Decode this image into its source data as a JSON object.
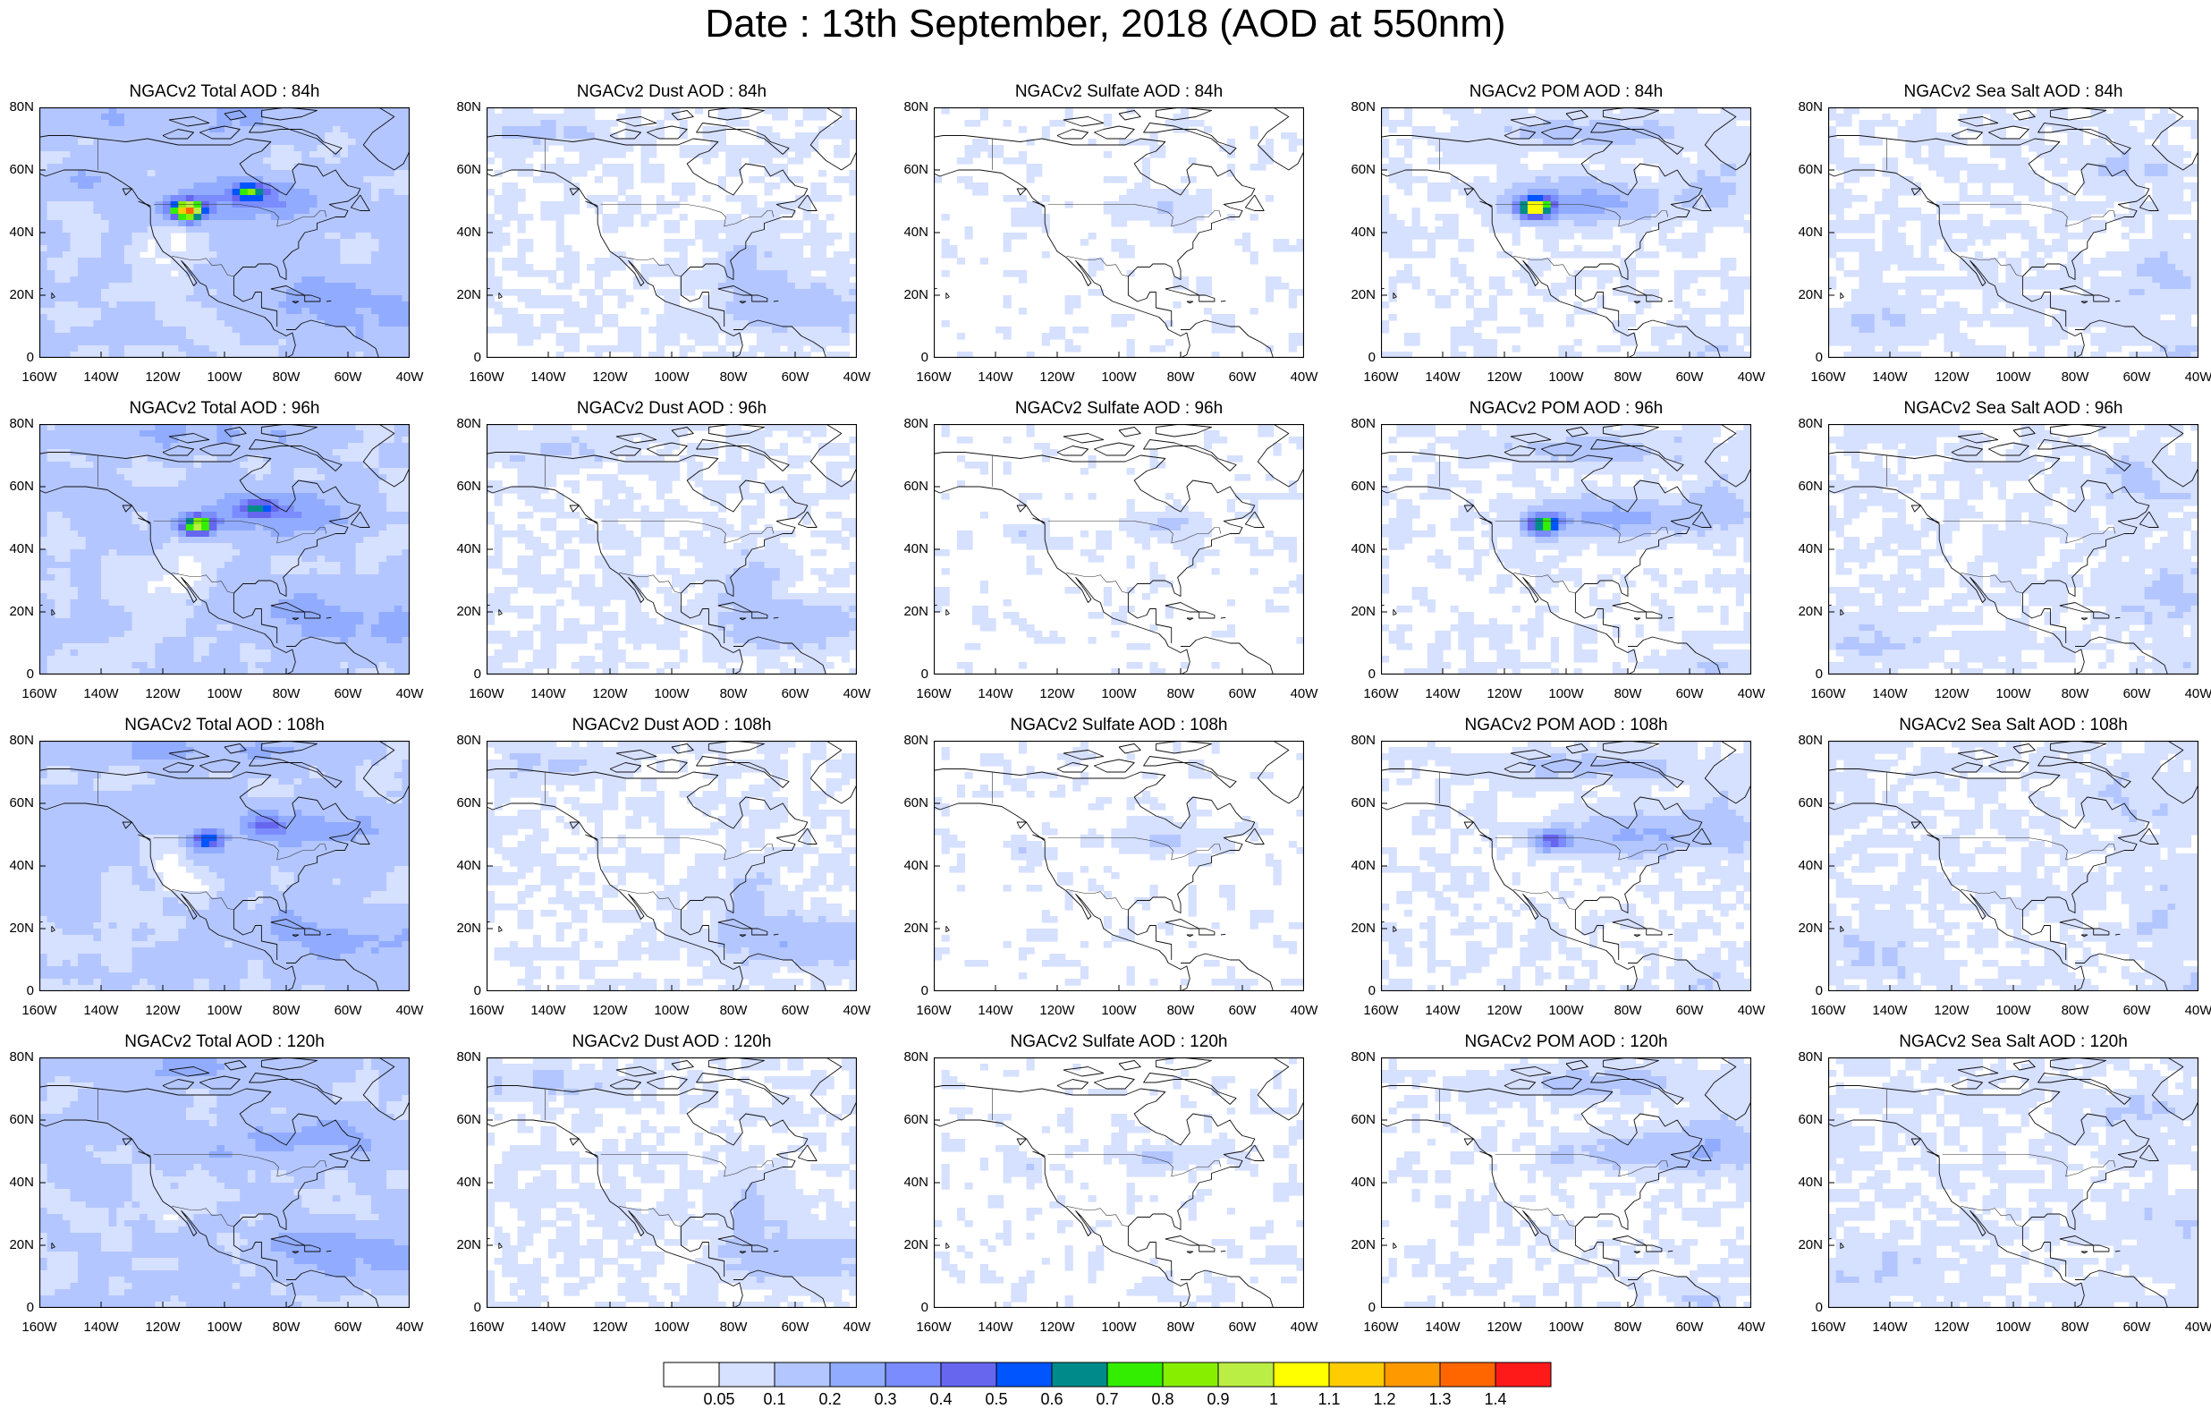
{
  "title": "Date : 13th September, 2018 (AOD at 550nm)",
  "rows": [
    {
      "panels": [
        {
          "title": "NGACv2 Total AOD : 84h",
          "species": "total",
          "lead": 84
        },
        {
          "title": "NGACv2 Dust AOD : 84h",
          "species": "dust",
          "lead": 84
        },
        {
          "title": "NGACv2 Sulfate AOD : 84h",
          "species": "sulfate",
          "lead": 84
        },
        {
          "title": "NGACv2 POM AOD : 84h",
          "species": "pom",
          "lead": 84
        },
        {
          "title": "NGACv2 Sea Salt AOD : 84h",
          "species": "seasalt",
          "lead": 84
        }
      ]
    },
    {
      "panels": [
        {
          "title": "NGACv2 Total AOD : 96h",
          "species": "total",
          "lead": 96
        },
        {
          "title": "NGACv2 Dust AOD : 96h",
          "species": "dust",
          "lead": 96
        },
        {
          "title": "NGACv2 Sulfate AOD : 96h",
          "species": "sulfate",
          "lead": 96
        },
        {
          "title": "NGACv2 POM AOD : 96h",
          "species": "pom",
          "lead": 96
        },
        {
          "title": "NGACv2 Sea Salt AOD : 96h",
          "species": "seasalt",
          "lead": 96
        }
      ]
    },
    {
      "panels": [
        {
          "title": "NGACv2 Total AOD : 108h",
          "species": "total",
          "lead": 108
        },
        {
          "title": "NGACv2 Dust AOD : 108h",
          "species": "dust",
          "lead": 108
        },
        {
          "title": "NGACv2 Sulfate AOD : 108h",
          "species": "sulfate",
          "lead": 108
        },
        {
          "title": "NGACv2 POM AOD : 108h",
          "species": "pom",
          "lead": 108
        },
        {
          "title": "NGACv2 Sea Salt AOD : 108h",
          "species": "seasalt",
          "lead": 108
        }
      ]
    },
    {
      "panels": [
        {
          "title": "NGACv2 Total AOD : 120h",
          "species": "total",
          "lead": 120
        },
        {
          "title": "NGACv2 Dust AOD : 120h",
          "species": "dust",
          "lead": 120
        },
        {
          "title": "NGACv2 Sulfate AOD : 120h",
          "species": "sulfate",
          "lead": 120
        },
        {
          "title": "NGACv2 POM AOD : 120h",
          "species": "pom",
          "lead": 120
        },
        {
          "title": "NGACv2 Sea Salt  AOD : 120h",
          "species": "seasalt",
          "lead": 120
        }
      ]
    }
  ],
  "lat_ticks": [
    "80N",
    "60N",
    "40N",
    "20N",
    "0"
  ],
  "lon_ticks": [
    "160W",
    "140W",
    "120W",
    "100W",
    "80W",
    "60W",
    "40W"
  ],
  "colorbar": {
    "labels": [
      "0.05",
      "0.1",
      "0.2",
      "0.3",
      "0.4",
      "0.5",
      "0.6",
      "0.7",
      "0.8",
      "0.9",
      "1",
      "1.1",
      "1.2",
      "1.3",
      "1.4"
    ],
    "colors": [
      "#ffffff",
      "#d6e0ff",
      "#b3c6ff",
      "#91acff",
      "#7a8cff",
      "#6666ee",
      "#0055ff",
      "#008b8b",
      "#33ee00",
      "#88ee00",
      "#bbee44",
      "#ffff00",
      "#ffcc00",
      "#ff9900",
      "#ff6600",
      "#ff1a1a"
    ]
  }
}
